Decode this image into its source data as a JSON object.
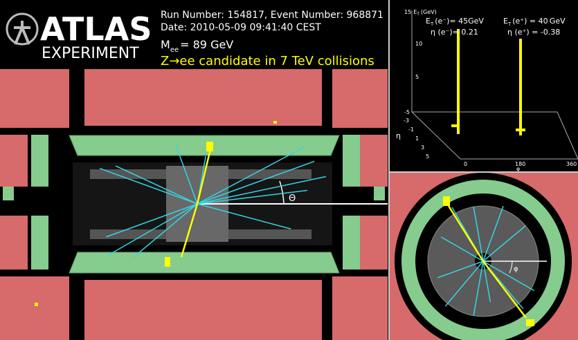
{
  "header": {
    "logo_top": "ATLAS",
    "logo_bottom": "EXPERIMENT",
    "run_line": "Run Number: 154817, Event Number: 968871",
    "date_line": "Date: 2010-05-09 09:41:40 CEST",
    "mass": {
      "symbol": "M",
      "sub": "ee",
      "text": "= 89 GeV"
    },
    "caption": "Z→ee candidate in 7 TeV collisions"
  },
  "side_view": {
    "angle_label": "Θ"
  },
  "lego_plot": {
    "axis_title": {
      "tick": "15",
      "symbol": "E",
      "sub": "T",
      "unit": "(GeV)"
    },
    "vertical_ticks": [
      "10",
      "5",
      "-5"
    ],
    "eta_ticks": [
      "-3",
      "-1",
      "1",
      "3",
      "5"
    ],
    "eta_label": "η",
    "phi_ticks": [
      "0",
      "180",
      "360"
    ],
    "phi_label": "φ",
    "electrons": [
      {
        "et_symbol": "E",
        "et_sub": "T",
        "et_text": "(e⁻)= 45GeV",
        "eta_text": "η (e⁻)= 0.21"
      },
      {
        "et_symbol": "E",
        "et_sub": "T",
        "et_text": "(e⁺) = 40 GeV",
        "eta_text": "η (e⁺) = -0.38"
      }
    ]
  },
  "end_view": {
    "angle_label": "φ"
  }
}
